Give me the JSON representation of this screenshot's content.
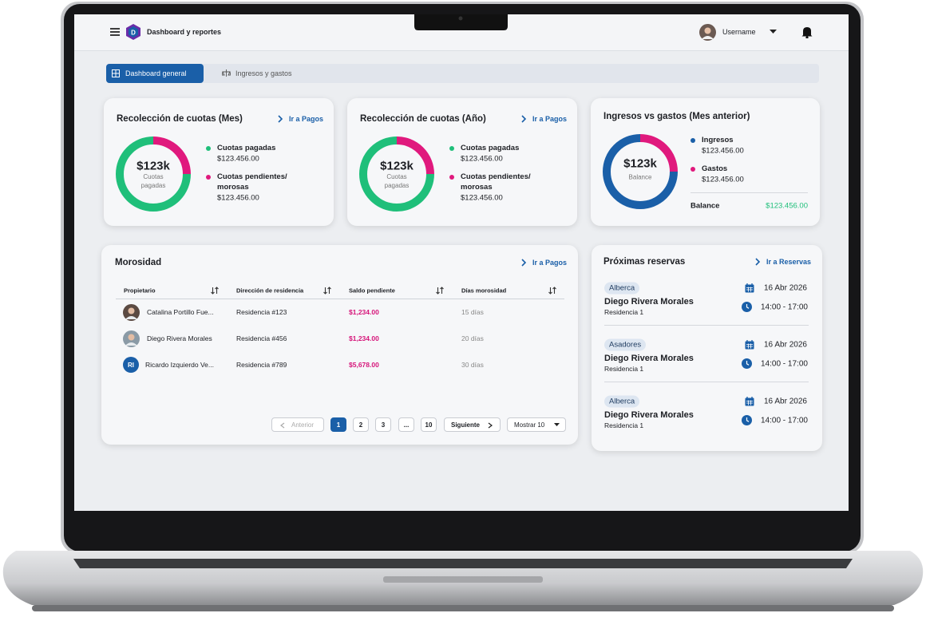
{
  "header": {
    "title": "Dashboard y reportes",
    "user": "Username"
  },
  "tabs": [
    "Dashboard general",
    "Ingresos y gastos"
  ],
  "cards": [
    {
      "title": "Recolección de cuotas (Mes)",
      "link": "Ir a Pagos",
      "center": "$123k",
      "center_label": "Cuotas pagadas",
      "items": [
        {
          "label": "Cuotas pagadas",
          "amount": "$123.456.00",
          "color": "#1fbf7a",
          "share": 75
        },
        {
          "label": "Cuotas pendientes/ morosas",
          "amount": "$123.456.00",
          "color": "#e0197d",
          "share": 25
        }
      ]
    },
    {
      "title": "Recolección de cuotas (Año)",
      "link": "Ir a Pagos",
      "center": "$123k",
      "center_label": "Cuotas pagadas",
      "items": [
        {
          "label": "Cuotas pagadas",
          "amount": "$123.456.00",
          "color": "#1fbf7a",
          "share": 75
        },
        {
          "label": "Cuotas pendientes/ morosas",
          "amount": "$123.456.00",
          "color": "#e0197d",
          "share": 25
        }
      ]
    },
    {
      "title": "Ingresos vs gastos (Mes anterior)",
      "center": "$123k",
      "center_label": "Balance",
      "items": [
        {
          "label": "Ingresos",
          "amount": "$123.456.00",
          "color": "#1a5fa8",
          "share": 75
        },
        {
          "label": "Gastos",
          "amount": "$123.456.00",
          "color": "#e0197d",
          "share": 25
        }
      ],
      "balance_label": "Balance",
      "balance_value": "$123.456.00"
    }
  ],
  "morosidad": {
    "title": "Morosidad",
    "link": "Ir a Pagos",
    "columns": [
      "Propietario",
      "Dirección de residencia",
      "Saldo pendiente",
      "Días morosidad"
    ],
    "rows": [
      {
        "initials": null,
        "owner": "Catalina Portillo Fue...",
        "address": "Residencia #123",
        "balance": "$1,234.00",
        "days": "15 días"
      },
      {
        "initials": null,
        "owner": "Diego Rivera Morales",
        "address": "Residencia #456",
        "balance": "$1,234.00",
        "days": "20 días"
      },
      {
        "initials": "RI",
        "owner": "Ricardo Izquierdo Ve...",
        "address": "Residencia #789",
        "balance": "$5,678.00",
        "days": "30 días"
      }
    ],
    "pagination": {
      "prev": "Anterior",
      "pages": [
        "1",
        "2",
        "3",
        "...",
        "10"
      ],
      "next": "Siguiente",
      "show": "Mostrar 10"
    }
  },
  "reservas": {
    "title": "Próximas reservas",
    "link": "Ir a Reservas",
    "items": [
      {
        "area": "Alberca",
        "name": "Diego Rivera Morales",
        "unit": "Residencia 1",
        "date": "16 Abr 2026",
        "time": "14:00 - 17:00"
      },
      {
        "area": "Asadores",
        "name": "Diego Rivera Morales",
        "unit": "Residencia 1",
        "date": "16 Abr 2026",
        "time": "14:00 - 17:00"
      },
      {
        "area": "Alberca",
        "name": "Diego Rivera Morales",
        "unit": "Residencia 1",
        "date": "16 Abr 2026",
        "time": "14:00 - 17:00"
      }
    ]
  }
}
